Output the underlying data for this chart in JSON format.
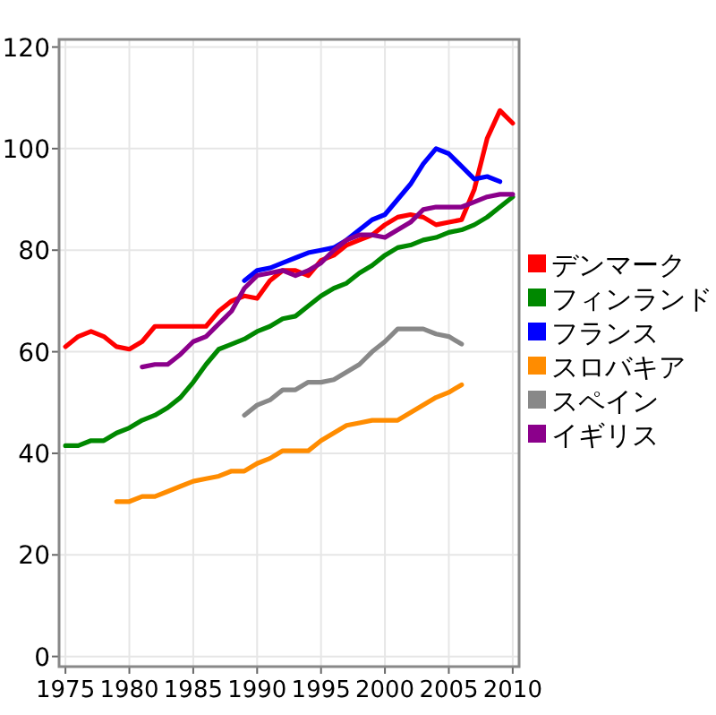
{
  "chart_data": {
    "type": "line",
    "xlim": [
      1974.5,
      2010.5
    ],
    "xticks": [
      1975,
      1980,
      1985,
      1990,
      1995,
      2000,
      2005,
      2010
    ],
    "ylim": [
      -2,
      121.5
    ],
    "yticks": [
      0,
      20,
      40,
      60,
      80,
      100,
      120
    ],
    "grid": true,
    "legend": "right",
    "marker": "none",
    "line_style": "solid",
    "series": [
      {
        "name": "デンマーク",
        "color": "#ff0000",
        "x": [
          1975,
          1976,
          1977,
          1978,
          1979,
          1980,
          1981,
          1982,
          1983,
          1984,
          1985,
          1986,
          1987,
          1988,
          1989,
          1990,
          1991,
          1992,
          1993,
          1994,
          1995,
          1996,
          1997,
          1998,
          1999,
          2000,
          2001,
          2002,
          2003,
          2004,
          2005,
          2006,
          2007,
          2008,
          2009,
          2010
        ],
        "values": [
          61,
          63,
          64,
          63,
          61,
          60.5,
          62,
          65,
          65,
          65,
          65,
          65,
          68,
          70,
          71,
          70.5,
          74,
          76,
          76,
          75,
          78,
          79,
          81,
          82,
          83,
          85,
          86.5,
          87,
          86.5,
          85,
          85.5,
          86,
          92,
          102,
          107.5,
          105
        ]
      },
      {
        "name": "フィンランド",
        "color": "#008800",
        "x": [
          1975,
          1976,
          1977,
          1978,
          1979,
          1980,
          1981,
          1982,
          1983,
          1984,
          1985,
          1986,
          1987,
          1988,
          1989,
          1990,
          1991,
          1992,
          1993,
          1994,
          1995,
          1996,
          1997,
          1998,
          1999,
          2000,
          2001,
          2002,
          2003,
          2004,
          2005,
          2006,
          2007,
          2008,
          2009,
          2010
        ],
        "values": [
          41.5,
          41.5,
          42.5,
          42.5,
          44,
          45,
          46.5,
          47.5,
          49,
          51,
          54,
          57.5,
          60.5,
          61.5,
          62.5,
          64,
          65,
          66.5,
          67,
          69,
          71,
          72.5,
          73.5,
          75.5,
          77,
          79,
          80.5,
          81,
          82,
          82.5,
          83.5,
          84,
          85,
          86.5,
          88.5,
          90.5
        ]
      },
      {
        "name": "フランス",
        "color": "#0000ff",
        "x": [
          1989,
          1990,
          1991,
          1992,
          1993,
          1994,
          1995,
          1996,
          1997,
          1998,
          1999,
          2000,
          2001,
          2002,
          2003,
          2004,
          2005,
          2006,
          2007,
          2008,
          2009
        ],
        "values": [
          74,
          76,
          76.5,
          77.5,
          78.5,
          79.5,
          80,
          80.5,
          82,
          84,
          86,
          87,
          90,
          93,
          97,
          100,
          99,
          96.5,
          94,
          94.5,
          93.5
        ]
      },
      {
        "name": "スロバキア",
        "color": "#ff8c00",
        "x": [
          1979,
          1980,
          1981,
          1982,
          1983,
          1984,
          1985,
          1986,
          1987,
          1988,
          1989,
          1990,
          1991,
          1992,
          1993,
          1994,
          1995,
          1996,
          1997,
          1998,
          1999,
          2000,
          2001,
          2002,
          2003,
          2004,
          2005,
          2006
        ],
        "values": [
          30.5,
          30.5,
          31.5,
          31.5,
          32.5,
          33.5,
          34.5,
          35,
          35.5,
          36.5,
          36.5,
          38,
          39,
          40.5,
          40.5,
          40.5,
          42.5,
          44,
          45.5,
          46,
          46.5,
          46.5,
          46.5,
          48,
          49.5,
          51,
          52,
          53.5
        ]
      },
      {
        "name": "スペイン",
        "color": "#888888",
        "x": [
          1989,
          1990,
          1991,
          1992,
          1993,
          1994,
          1995,
          1996,
          1997,
          1998,
          1999,
          2000,
          2001,
          2002,
          2003,
          2004,
          2005,
          2006
        ],
        "values": [
          47.5,
          49.5,
          50.5,
          52.5,
          52.5,
          54,
          54,
          54.5,
          56,
          57.5,
          60,
          62,
          64.5,
          64.5,
          64.5,
          63.5,
          63,
          61.5
        ]
      },
      {
        "name": "イギリス",
        "color": "#8b008b",
        "x": [
          1981,
          1982,
          1983,
          1984,
          1985,
          1986,
          1987,
          1988,
          1989,
          1990,
          1991,
          1992,
          1993,
          1994,
          1995,
          1996,
          1997,
          1998,
          1999,
          2000,
          2001,
          2002,
          2003,
          2004,
          2005,
          2006,
          2007,
          2008,
          2009,
          2010
        ],
        "values": [
          57,
          57.5,
          57.5,
          59.5,
          62,
          63,
          65.5,
          68,
          72.5,
          75,
          75.5,
          76,
          75,
          76,
          77.5,
          80,
          82,
          83,
          83,
          82.5,
          84,
          85.5,
          88,
          88.5,
          88.5,
          88.5,
          89.5,
          90.5,
          91,
          91
        ]
      }
    ]
  }
}
